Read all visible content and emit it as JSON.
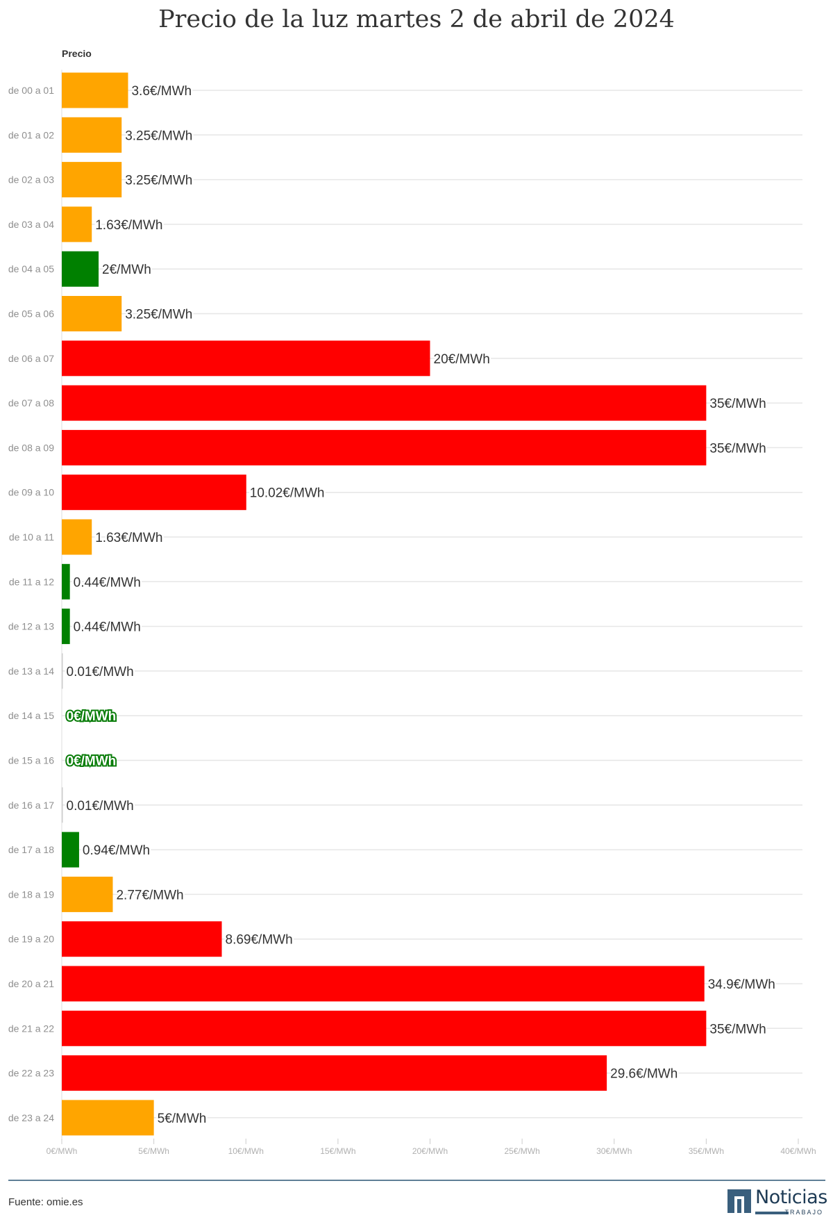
{
  "title": "Precio de la luz martes 2 de abril de 2024",
  "column_header": "Precio",
  "source": "Fuente: omie.es",
  "logo": {
    "name": "Noticias",
    "sub": "TRABAJO",
    "color": "#3a5f7d"
  },
  "colors": {
    "high": "#ff0000",
    "mid": "#ffa500",
    "low": "#008000",
    "grid": "#e6e6e6"
  },
  "chart_data": {
    "type": "bar",
    "orientation": "horizontal",
    "title": "Precio de la luz martes 2 de abril de 2024",
    "column_header": "Precio",
    "unit": "€/MWh",
    "xlim": [
      0,
      40
    ],
    "x_ticks": [
      0,
      5,
      10,
      15,
      20,
      25,
      30,
      35,
      40
    ],
    "x_tick_labels": [
      "0€/MWh",
      "5€/MWh",
      "10€/MWh",
      "15€/MWh",
      "20€/MWh",
      "25€/MWh",
      "30€/MWh",
      "35€/MWh",
      "40€/MWh"
    ],
    "grid": true,
    "categories": [
      "de 00 a 01",
      "de 01 a 02",
      "de 02 a 03",
      "de 03 a 04",
      "de 04 a 05",
      "de 05 a 06",
      "de 06 a 07",
      "de 07 a 08",
      "de 08 a 09",
      "de 09 a 10",
      "de 10 a 11",
      "de 11 a 12",
      "de 12 a 13",
      "de 13 a 14",
      "de 14 a 15",
      "de 15 a 16",
      "de 16 a 17",
      "de 17 a 18",
      "de 18 a 19",
      "de 19 a 20",
      "de 20 a 21",
      "de 21 a 22",
      "de 22 a 23",
      "de 23 a 24"
    ],
    "values": [
      3.6,
      3.25,
      3.25,
      1.63,
      2,
      3.25,
      20,
      35,
      35,
      10.02,
      1.63,
      0.44,
      0.44,
      0.01,
      0,
      0,
      0.01,
      0.94,
      2.77,
      8.69,
      34.9,
      35,
      29.6,
      5
    ],
    "value_labels": [
      "3.6€/MWh",
      "3.25€/MWh",
      "3.25€/MWh",
      "1.63€/MWh",
      "2€/MWh",
      "3.25€/MWh",
      "20€/MWh",
      "35€/MWh",
      "35€/MWh",
      "10.02€/MWh",
      "1.63€/MWh",
      "0.44€/MWh",
      "0.44€/MWh",
      "0.01€/MWh",
      "0€/MWh",
      "0€/MWh",
      "0.01€/MWh",
      "0.94€/MWh",
      "2.77€/MWh",
      "8.69€/MWh",
      "34.9€/MWh",
      "35€/MWh",
      "29.6€/MWh",
      "5€/MWh"
    ],
    "bar_colors": [
      "#ffa500",
      "#ffa500",
      "#ffa500",
      "#ffa500",
      "#008000",
      "#ffa500",
      "#ff0000",
      "#ff0000",
      "#ff0000",
      "#ff0000",
      "#ffa500",
      "#008000",
      "#008000",
      "#cccccc",
      "#008000",
      "#008000",
      "#cccccc",
      "#008000",
      "#ffa500",
      "#ff0000",
      "#ff0000",
      "#ff0000",
      "#ff0000",
      "#ffa500"
    ]
  }
}
